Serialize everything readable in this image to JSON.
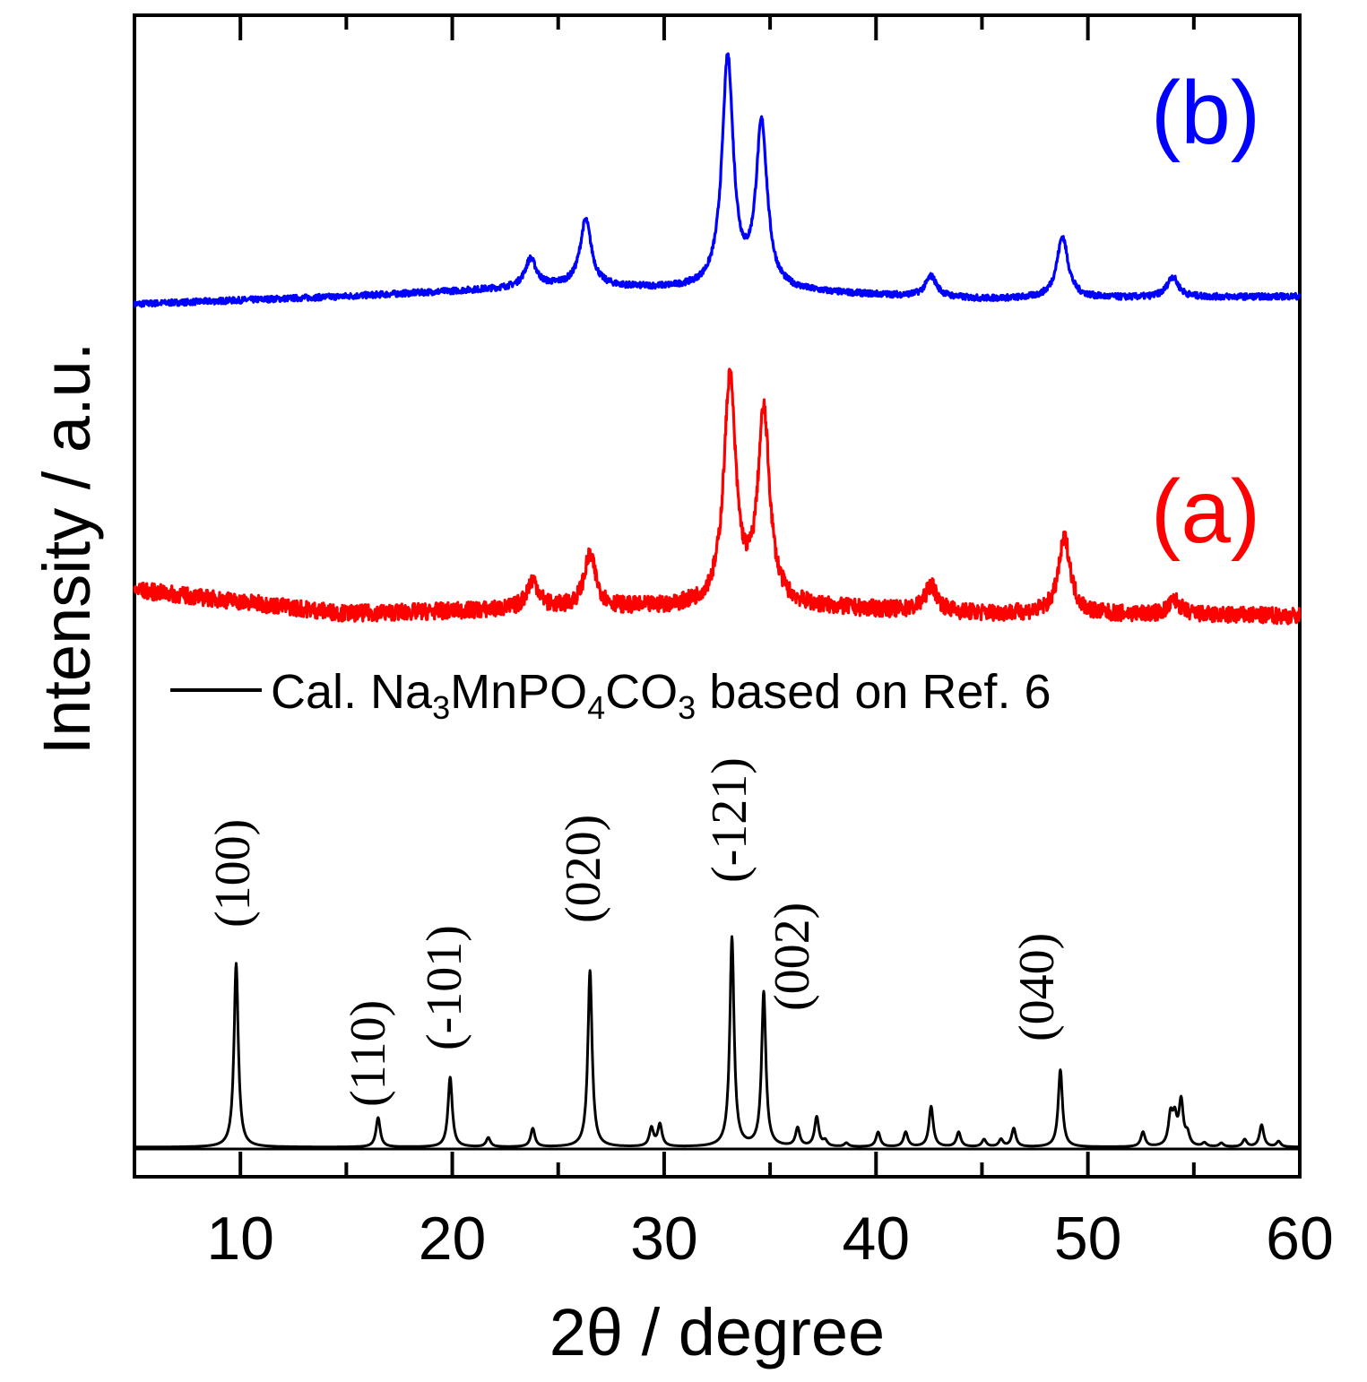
{
  "chart_data": {
    "type": "line",
    "title": "",
    "xlabel": "2θ / degree",
    "ylabel": "Intensity / a.u.",
    "xlim": [
      5,
      60
    ],
    "xticks": [
      10,
      20,
      30,
      40,
      50,
      60
    ],
    "y_ticks_shown": false,
    "legend": {
      "placement": "middle-left",
      "entry": {
        "series": "Cal. Na3MnPO4CO3 based on Ref. 6",
        "parts": [
          {
            "text": "Cal. Na",
            "sub": false
          },
          {
            "text": "3",
            "sub": true
          },
          {
            "text": "MnPO",
            "sub": false
          },
          {
            "text": "4",
            "sub": true
          },
          {
            "text": "CO",
            "sub": false
          },
          {
            "text": "3",
            "sub": true
          },
          {
            "text": " based on Ref. 6",
            "sub": false
          }
        ]
      }
    },
    "series": [
      {
        "name": "(b)",
        "label": "(b)",
        "color": "#0000ff",
        "noise": 0.012,
        "baseline": [
          [
            5,
            0.02
          ],
          [
            15,
            0.05
          ],
          [
            25,
            0.09
          ],
          [
            35,
            0.07
          ],
          [
            45,
            0.04
          ],
          [
            60,
            0.05
          ]
        ],
        "peaks": [
          {
            "x": 23.7,
            "h": 0.11
          },
          {
            "x": 26.3,
            "h": 0.26
          },
          {
            "x": 33.0,
            "h": 0.9
          },
          {
            "x": 34.6,
            "h": 0.64
          },
          {
            "x": 42.6,
            "h": 0.08
          },
          {
            "x": 48.8,
            "h": 0.24
          },
          {
            "x": 54.0,
            "h": 0.08
          }
        ]
      },
      {
        "name": "(a)",
        "label": "(a)",
        "color": "#ff0000",
        "noise": 0.035,
        "baseline": [
          [
            5,
            0.12
          ],
          [
            15,
            0.02
          ],
          [
            25,
            0.04
          ],
          [
            35,
            0.05
          ],
          [
            45,
            0.02
          ],
          [
            60,
            0.01
          ]
        ],
        "peaks": [
          {
            "x": 23.8,
            "h": 0.12
          },
          {
            "x": 26.5,
            "h": 0.22
          },
          {
            "x": 33.1,
            "h": 0.95
          },
          {
            "x": 34.7,
            "h": 0.8
          },
          {
            "x": 42.6,
            "h": 0.11
          },
          {
            "x": 48.9,
            "h": 0.32
          },
          {
            "x": 54.1,
            "h": 0.06
          }
        ]
      },
      {
        "name": "Cal. Na3MnPO4CO3 based on Ref. 6",
        "color": "#000000",
        "peaks": [
          {
            "x": 9.8,
            "h": 1.0,
            "hkl": "(100)"
          },
          {
            "x": 16.5,
            "h": 0.16,
            "hkl": "(110)"
          },
          {
            "x": 19.9,
            "h": 0.38,
            "hkl": "(-101)"
          },
          {
            "x": 21.7,
            "h": 0.05
          },
          {
            "x": 23.8,
            "h": 0.1
          },
          {
            "x": 26.5,
            "h": 0.96,
            "hkl": "(020)"
          },
          {
            "x": 29.4,
            "h": 0.1
          },
          {
            "x": 29.8,
            "h": 0.12
          },
          {
            "x": 33.2,
            "h": 1.14,
            "hkl": "(-121)"
          },
          {
            "x": 34.7,
            "h": 0.84,
            "hkl": "(002)"
          },
          {
            "x": 36.3,
            "h": 0.1
          },
          {
            "x": 37.2,
            "h": 0.16
          },
          {
            "x": 37.6,
            "h": 0.03
          },
          {
            "x": 38.6,
            "h": 0.02
          },
          {
            "x": 40.1,
            "h": 0.08
          },
          {
            "x": 41.4,
            "h": 0.08
          },
          {
            "x": 42.6,
            "h": 0.22
          },
          {
            "x": 43.9,
            "h": 0.08
          },
          {
            "x": 45.1,
            "h": 0.04
          },
          {
            "x": 45.9,
            "h": 0.04
          },
          {
            "x": 46.5,
            "h": 0.1
          },
          {
            "x": 48.7,
            "h": 0.42,
            "hkl": "(040)"
          },
          {
            "x": 52.6,
            "h": 0.08
          },
          {
            "x": 53.9,
            "h": 0.16
          },
          {
            "x": 54.1,
            "h": 0.14
          },
          {
            "x": 54.4,
            "h": 0.24
          },
          {
            "x": 54.7,
            "h": 0.06
          },
          {
            "x": 55.5,
            "h": 0.02
          },
          {
            "x": 56.3,
            "h": 0.02
          },
          {
            "x": 57.4,
            "h": 0.04
          },
          {
            "x": 58.2,
            "h": 0.12
          },
          {
            "x": 59.0,
            "h": 0.03
          }
        ]
      }
    ]
  }
}
